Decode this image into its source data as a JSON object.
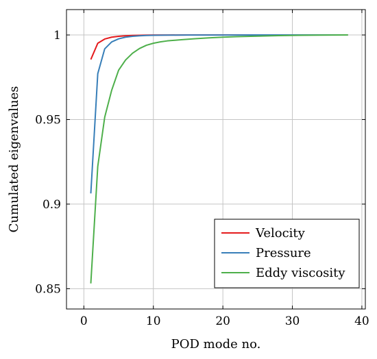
{
  "chart_data": {
    "type": "line",
    "xlabel": "POD mode no.",
    "ylabel": "Cumulated eigenvalues",
    "xlim": [
      -2.5,
      40.5
    ],
    "ylim": [
      0.838,
      1.015
    ],
    "xticks": [
      0,
      10,
      20,
      30,
      40
    ],
    "yticks": [
      0.85,
      0.9,
      0.95,
      1
    ],
    "ytick_labels": [
      "0.85",
      "0.9",
      "0.95",
      "1"
    ],
    "grid": true,
    "legend_position": "bottom-right",
    "series": [
      {
        "name": "Velocity",
        "color": "#e41a1c",
        "x": [
          1,
          2,
          3,
          4,
          5,
          6,
          7,
          8,
          9,
          10,
          12,
          15,
          20,
          25,
          30,
          35,
          38
        ],
        "y": [
          0.9855,
          0.9951,
          0.9976,
          0.9987,
          0.9992,
          0.9995,
          0.9997,
          0.9998,
          0.9999,
          0.99995,
          0.99998,
          1.0,
          1.0,
          1.0,
          1.0,
          1.0,
          1.0
        ]
      },
      {
        "name": "Pressure",
        "color": "#377eb8",
        "x": [
          1,
          2,
          3,
          4,
          5,
          6,
          7,
          8,
          9,
          10,
          12,
          15,
          20,
          25,
          30,
          35,
          38
        ],
        "y": [
          0.9063,
          0.9771,
          0.9918,
          0.9959,
          0.9977,
          0.9987,
          0.9992,
          0.9995,
          0.9997,
          0.9998,
          0.9999,
          0.99995,
          0.99998,
          1.0,
          1.0,
          1.0,
          1.0
        ]
      },
      {
        "name": "Eddy viscosity",
        "color": "#4daf4a",
        "x": [
          1,
          2,
          3,
          4,
          5,
          6,
          7,
          8,
          9,
          10,
          11,
          12,
          14,
          16,
          18,
          20,
          22,
          25,
          28,
          31,
          34,
          38
        ],
        "y": [
          0.8531,
          0.9223,
          0.9514,
          0.9673,
          0.9792,
          0.9852,
          0.9892,
          0.992,
          0.9939,
          0.9951,
          0.9959,
          0.9965,
          0.9972,
          0.9978,
          0.9983,
          0.9987,
          0.999,
          0.9993,
          0.9996,
          0.9998,
          0.9999,
          1.0
        ]
      }
    ]
  }
}
